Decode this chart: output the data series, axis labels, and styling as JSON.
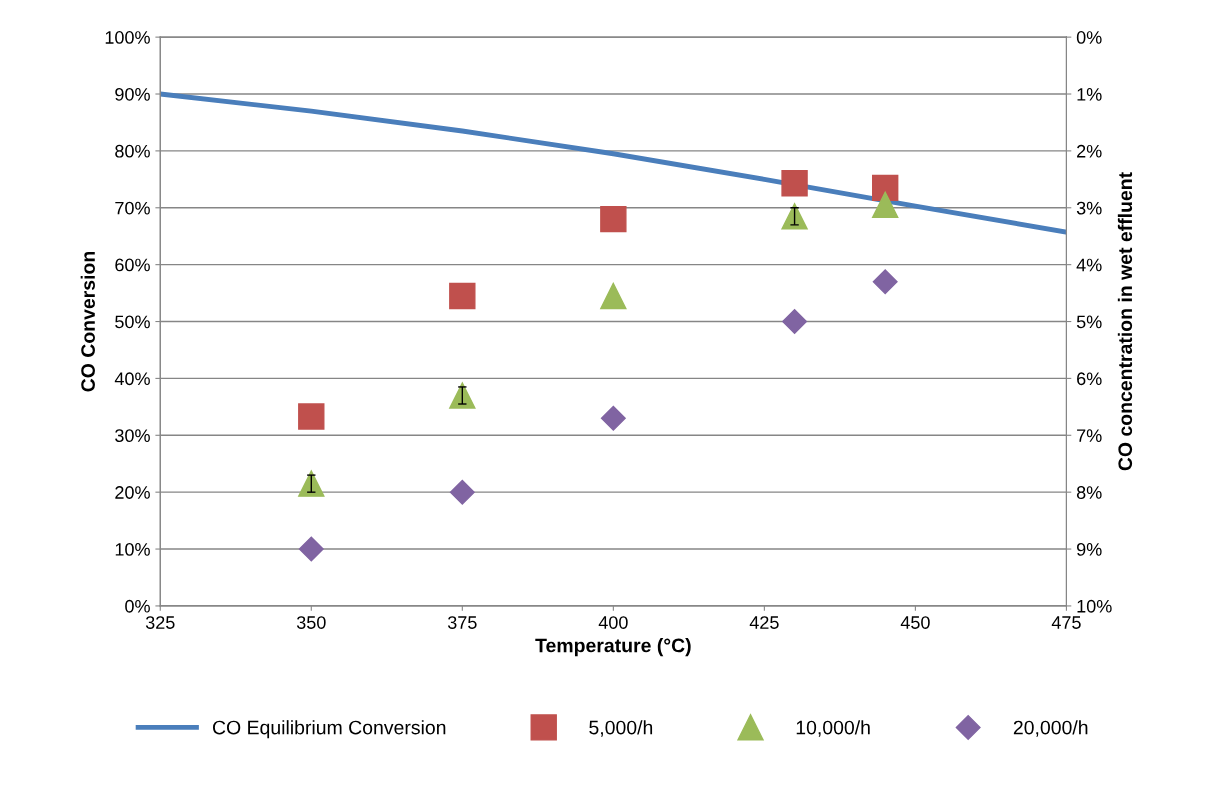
{
  "chart_data": {
    "type": "scatter",
    "xlabel": "Temperature (°C)",
    "ylabel": "CO Conversion",
    "y2label": "CO concentration in wet effluent",
    "xlim": [
      325,
      475
    ],
    "xticks": [
      325,
      350,
      375,
      400,
      425,
      450,
      475
    ],
    "ylim": [
      0,
      100
    ],
    "yticks": [
      {
        "value": 0,
        "label": "0%"
      },
      {
        "value": 10,
        "label": "10%"
      },
      {
        "value": 20,
        "label": "20%"
      },
      {
        "value": 30,
        "label": "30%"
      },
      {
        "value": 40,
        "label": "40%"
      },
      {
        "value": 50,
        "label": "50%"
      },
      {
        "value": 60,
        "label": "60%"
      },
      {
        "value": 70,
        "label": "70%"
      },
      {
        "value": 80,
        "label": "80%"
      },
      {
        "value": 90,
        "label": "90%"
      },
      {
        "value": 100,
        "label": "100%"
      }
    ],
    "y2lim": [
      10,
      0
    ],
    "y2ticks": [
      {
        "value": 0,
        "label": "0%"
      },
      {
        "value": 1,
        "label": "1%"
      },
      {
        "value": 2,
        "label": "2%"
      },
      {
        "value": 3,
        "label": "3%"
      },
      {
        "value": 4,
        "label": "4%"
      },
      {
        "value": 5,
        "label": "5%"
      },
      {
        "value": 6,
        "label": "6%"
      },
      {
        "value": 7,
        "label": "7%"
      },
      {
        "value": 8,
        "label": "8%"
      },
      {
        "value": 9,
        "label": "9%"
      },
      {
        "value": 10,
        "label": "10%"
      }
    ],
    "grid": "y",
    "legend": "bottom",
    "series": [
      {
        "name": "CO Equilibrium Conversion",
        "type": "line",
        "marker": "none",
        "line_style": "solid",
        "color": "#4a7ebb",
        "x": [
          325,
          350,
          375,
          400,
          425,
          450,
          475
        ],
        "values": [
          90,
          87,
          83.5,
          79.5,
          75,
          70.3,
          65.7
        ]
      },
      {
        "name": "5,000/h",
        "marker": "square",
        "color": "#c0504d",
        "x": [
          350,
          375,
          400,
          430,
          445
        ],
        "values": [
          33.3,
          54.5,
          68,
          74.3,
          73.5
        ]
      },
      {
        "name": "10,000/h",
        "marker": "triangle",
        "color": "#9bbb59",
        "x": [
          350,
          375,
          400,
          430,
          445
        ],
        "values": [
          21.5,
          37,
          54.5,
          68.5,
          70.5
        ],
        "errors": [
          1.5,
          1.5,
          null,
          1.5,
          null
        ]
      },
      {
        "name": "20,000/h",
        "marker": "diamond",
        "color": "#8064a2",
        "x": [
          350,
          375,
          400,
          430,
          445
        ],
        "values": [
          10,
          20,
          33,
          50,
          57
        ]
      }
    ]
  }
}
